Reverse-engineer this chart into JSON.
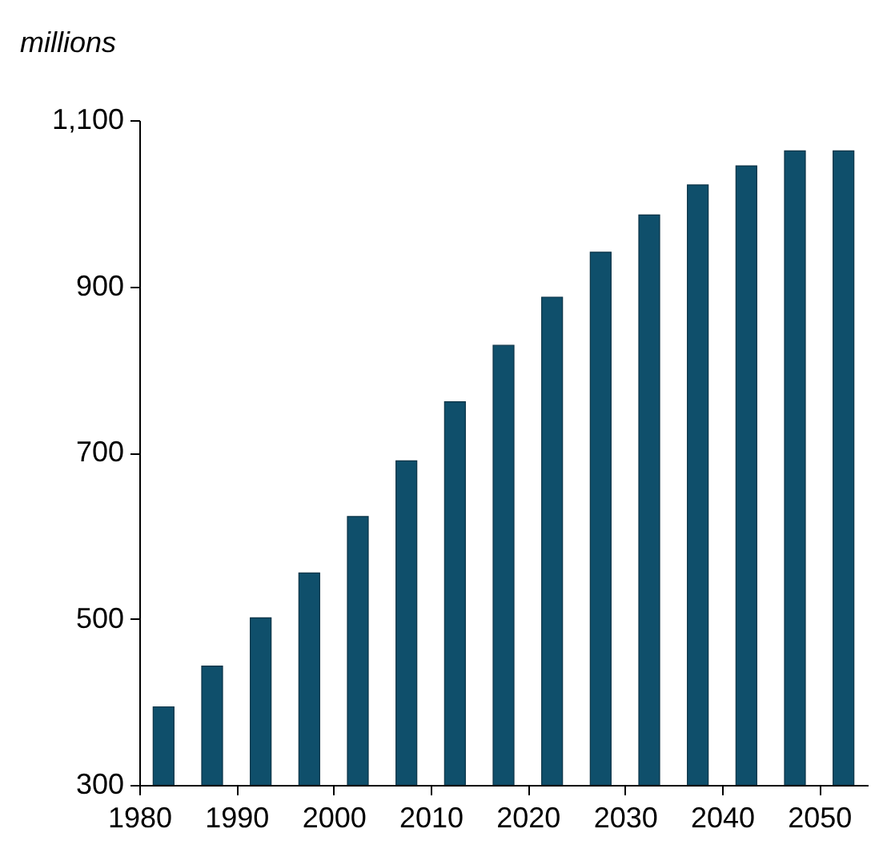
{
  "chart_data": {
    "type": "bar",
    "ylabel": "millions",
    "x": [
      1982.5,
      1987.5,
      1992.5,
      1997.5,
      2002.5,
      2007.5,
      2012.5,
      2017.5,
      2022.5,
      2027.5,
      2032.5,
      2037.5,
      2042.5,
      2047.5,
      2052.5
    ],
    "values": [
      394,
      443,
      501,
      555,
      623,
      690,
      761,
      829,
      887,
      941,
      986,
      1022,
      1045,
      1063,
      1063
    ],
    "color": "#0f4f6b",
    "xlim": [
      1980,
      2055
    ],
    "xticks": [
      1980,
      1990,
      2000,
      2010,
      2020,
      2030,
      2040,
      2050
    ],
    "ylim": [
      300,
      1100
    ],
    "yticks": [
      {
        "value": 300,
        "label": "300"
      },
      {
        "value": 500,
        "label": "500"
      },
      {
        "value": 700,
        "label": "700"
      },
      {
        "value": 900,
        "label": "900"
      },
      {
        "value": 1100,
        "label": "1,100"
      }
    ],
    "grid": false
  }
}
